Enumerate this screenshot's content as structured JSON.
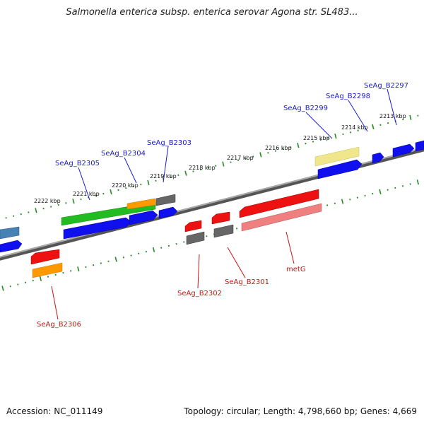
{
  "title": "Salmonella enterica subsp. enterica serovar Agona str. SL483...",
  "footer": {
    "accession": "Accession: NC_011149",
    "stats": "Topology: circular; Length: 4,798,660 bp; Genes: 4,669"
  },
  "colors": {
    "backbone": "#888888",
    "tick": "#228B22",
    "forward_label": "#1a1acc",
    "reverse_label": "#cc1111"
  },
  "scale_labels": [
    "2222 kbp",
    "2221 kbp",
    "2220 kbp",
    "2219 kbp",
    "2218 kbp",
    "2217 kbp",
    "2216 kbp",
    "2215 kbp",
    "2214 kbp",
    "2213 kbp"
  ],
  "forward_gene_labels": [
    "SeAg_B2305",
    "SeAg_B2304",
    "SeAg_B2303",
    "SeAg_B2299",
    "SeAg_B2298",
    "SeAg_B2297"
  ],
  "reverse_gene_labels": [
    "SeAg_B2306",
    "SeAg_B2302",
    "SeAg_B2301",
    "metG"
  ],
  "feature_colors": {
    "cds": "#1010ee",
    "gene_fwd": "#22bb22",
    "gene_rev": "#ee1111",
    "gene_light": "#f08080",
    "orange": "#ff9900",
    "grey": "#666666",
    "yellow": "#f0e68c",
    "steel": "#4682b4"
  }
}
